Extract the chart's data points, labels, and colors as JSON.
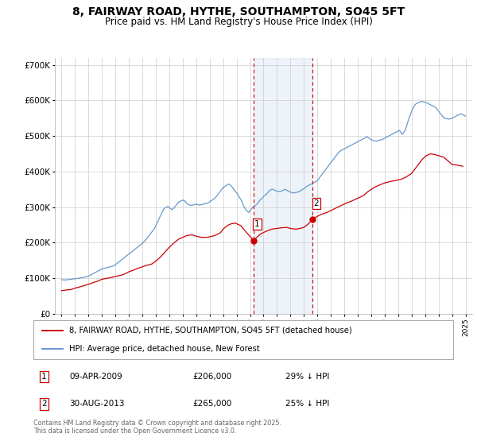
{
  "title": "8, FAIRWAY ROAD, HYTHE, SOUTHAMPTON, SO45 5FT",
  "subtitle": "Price paid vs. HM Land Registry's House Price Index (HPI)",
  "title_fontsize": 10,
  "subtitle_fontsize": 8.5,
  "background_color": "#ffffff",
  "plot_bg_color": "#ffffff",
  "grid_color": "#cccccc",
  "red_line_color": "#cc0000",
  "blue_line_color": "#6699cc",
  "shade_color": "#ccddf0",
  "dashed_line_color": "#cc0000",
  "ylim": [
    0,
    720000
  ],
  "yticks": [
    0,
    100000,
    200000,
    300000,
    400000,
    500000,
    600000,
    700000
  ],
  "ytick_labels": [
    "£0",
    "£100K",
    "£200K",
    "£300K",
    "£400K",
    "£500K",
    "£600K",
    "£700K"
  ],
  "xlim_start": 1994.5,
  "xlim_end": 2025.5,
  "xticks": [
    1995,
    1996,
    1997,
    1998,
    1999,
    2000,
    2001,
    2002,
    2003,
    2004,
    2005,
    2006,
    2007,
    2008,
    2009,
    2010,
    2011,
    2012,
    2013,
    2014,
    2015,
    2016,
    2017,
    2018,
    2019,
    2020,
    2021,
    2022,
    2023,
    2024,
    2025
  ],
  "sale1_x": 2009.27,
  "sale1_y": 206000,
  "sale1_label": "1",
  "sale2_x": 2013.66,
  "sale2_y": 265000,
  "sale2_label": "2",
  "sale1_date": "09-APR-2009",
  "sale1_price": "£206,000",
  "sale1_hpi": "29% ↓ HPI",
  "sale2_date": "30-AUG-2013",
  "sale2_price": "£265,000",
  "sale2_hpi": "25% ↓ HPI",
  "legend_label_red": "8, FAIRWAY ROAD, HYTHE, SOUTHAMPTON, SO45 5FT (detached house)",
  "legend_label_blue": "HPI: Average price, detached house, New Forest",
  "footnote": "Contains HM Land Registry data © Crown copyright and database right 2025.\nThis data is licensed under the Open Government Licence v3.0.",
  "hpi_data": {
    "years": [
      1995.0,
      1995.1,
      1995.2,
      1995.3,
      1995.4,
      1995.5,
      1995.6,
      1995.7,
      1995.8,
      1995.9,
      1996.0,
      1996.1,
      1996.2,
      1996.3,
      1996.4,
      1996.5,
      1996.6,
      1996.7,
      1996.8,
      1996.9,
      1997.0,
      1997.1,
      1997.2,
      1997.3,
      1997.4,
      1997.5,
      1997.6,
      1997.7,
      1997.8,
      1997.9,
      1998.0,
      1998.1,
      1998.2,
      1998.3,
      1998.4,
      1998.5,
      1998.6,
      1998.7,
      1998.8,
      1998.9,
      1999.0,
      1999.1,
      1999.2,
      1999.3,
      1999.4,
      1999.5,
      1999.6,
      1999.7,
      1999.8,
      1999.9,
      2000.0,
      2000.1,
      2000.2,
      2000.3,
      2000.4,
      2000.5,
      2000.6,
      2000.7,
      2000.8,
      2000.9,
      2001.0,
      2001.1,
      2001.2,
      2001.3,
      2001.4,
      2001.5,
      2001.6,
      2001.7,
      2001.8,
      2001.9,
      2002.0,
      2002.1,
      2002.2,
      2002.3,
      2002.4,
      2002.5,
      2002.6,
      2002.7,
      2002.8,
      2002.9,
      2003.0,
      2003.1,
      2003.2,
      2003.3,
      2003.4,
      2003.5,
      2003.6,
      2003.7,
      2003.8,
      2003.9,
      2004.0,
      2004.1,
      2004.2,
      2004.3,
      2004.4,
      2004.5,
      2004.6,
      2004.7,
      2004.8,
      2004.9,
      2005.0,
      2005.1,
      2005.2,
      2005.3,
      2005.4,
      2005.5,
      2005.6,
      2005.7,
      2005.8,
      2005.9,
      2006.0,
      2006.1,
      2006.2,
      2006.3,
      2006.4,
      2006.5,
      2006.6,
      2006.7,
      2006.8,
      2006.9,
      2007.0,
      2007.1,
      2007.2,
      2007.3,
      2007.4,
      2007.5,
      2007.6,
      2007.7,
      2007.8,
      2007.9,
      2008.0,
      2008.1,
      2008.2,
      2008.3,
      2008.4,
      2008.5,
      2008.6,
      2008.7,
      2008.8,
      2008.9,
      2009.0,
      2009.1,
      2009.2,
      2009.3,
      2009.4,
      2009.5,
      2009.6,
      2009.7,
      2009.8,
      2009.9,
      2010.0,
      2010.1,
      2010.2,
      2010.3,
      2010.4,
      2010.5,
      2010.6,
      2010.7,
      2010.8,
      2010.9,
      2011.0,
      2011.1,
      2011.2,
      2011.3,
      2011.4,
      2011.5,
      2011.6,
      2011.7,
      2011.8,
      2011.9,
      2012.0,
      2012.1,
      2012.2,
      2012.3,
      2012.4,
      2012.5,
      2012.6,
      2012.7,
      2012.8,
      2012.9,
      2013.0,
      2013.1,
      2013.2,
      2013.3,
      2013.4,
      2013.5,
      2013.6,
      2013.7,
      2013.8,
      2013.9,
      2014.0,
      2014.1,
      2014.2,
      2014.3,
      2014.4,
      2014.5,
      2014.6,
      2014.7,
      2014.8,
      2014.9,
      2015.0,
      2015.1,
      2015.2,
      2015.3,
      2015.4,
      2015.5,
      2015.6,
      2015.7,
      2015.8,
      2015.9,
      2016.0,
      2016.1,
      2016.2,
      2016.3,
      2016.4,
      2016.5,
      2016.6,
      2016.7,
      2016.8,
      2016.9,
      2017.0,
      2017.1,
      2017.2,
      2017.3,
      2017.4,
      2017.5,
      2017.6,
      2017.7,
      2017.8,
      2017.9,
      2018.0,
      2018.1,
      2018.2,
      2018.3,
      2018.4,
      2018.5,
      2018.6,
      2018.7,
      2018.8,
      2018.9,
      2019.0,
      2019.1,
      2019.2,
      2019.3,
      2019.4,
      2019.5,
      2019.6,
      2019.7,
      2019.8,
      2019.9,
      2020.0,
      2020.1,
      2020.2,
      2020.3,
      2020.4,
      2020.5,
      2020.6,
      2020.7,
      2020.8,
      2020.9,
      2021.0,
      2021.1,
      2021.2,
      2021.3,
      2021.4,
      2021.5,
      2021.6,
      2021.7,
      2021.8,
      2021.9,
      2022.0,
      2022.1,
      2022.2,
      2022.3,
      2022.4,
      2022.5,
      2022.6,
      2022.7,
      2022.8,
      2022.9,
      2023.0,
      2023.1,
      2023.2,
      2023.3,
      2023.4,
      2023.5,
      2023.6,
      2023.7,
      2023.8,
      2023.9,
      2024.0,
      2024.1,
      2024.2,
      2024.3,
      2024.4,
      2024.5,
      2024.6,
      2024.7,
      2024.8,
      2024.9,
      2025.0
    ],
    "values": [
      96000,
      95000,
      95500,
      95000,
      95500,
      96000,
      96500,
      97000,
      97500,
      98000,
      98500,
      99000,
      99500,
      100000,
      100500,
      101000,
      102000,
      103000,
      104000,
      105000,
      106000,
      108000,
      110000,
      112000,
      114000,
      116000,
      118000,
      120000,
      122000,
      124000,
      126000,
      127000,
      128000,
      129000,
      130000,
      131000,
      132000,
      133000,
      134000,
      135000,
      138000,
      141000,
      144000,
      147000,
      150000,
      153000,
      156000,
      159000,
      162000,
      165000,
      168000,
      171000,
      174000,
      177000,
      180000,
      183000,
      186000,
      189000,
      192000,
      195000,
      198000,
      202000,
      206000,
      210000,
      215000,
      220000,
      225000,
      230000,
      235000,
      240000,
      248000,
      256000,
      264000,
      272000,
      280000,
      288000,
      296000,
      298000,
      300000,
      302000,
      298000,
      295000,
      293000,
      296000,
      300000,
      305000,
      310000,
      314000,
      316000,
      318000,
      320000,
      318000,
      316000,
      310000,
      308000,
      306000,
      305000,
      305000,
      306000,
      308000,
      308000,
      307000,
      306000,
      306000,
      307000,
      308000,
      309000,
      310000,
      311000,
      312000,
      315000,
      318000,
      320000,
      323000,
      326000,
      330000,
      335000,
      340000,
      345000,
      350000,
      355000,
      358000,
      360000,
      363000,
      365000,
      363000,
      360000,
      355000,
      350000,
      345000,
      340000,
      335000,
      328000,
      322000,
      315000,
      305000,
      298000,
      292000,
      288000,
      285000,
      290000,
      295000,
      300000,
      302000,
      305000,
      308000,
      312000,
      318000,
      322000,
      325000,
      330000,
      333000,
      336000,
      340000,
      345000,
      348000,
      350000,
      350000,
      348000,
      346000,
      345000,
      344000,
      344000,
      345000,
      346000,
      348000,
      350000,
      348000,
      346000,
      344000,
      342000,
      341000,
      340000,
      340000,
      341000,
      342000,
      343000,
      345000,
      347000,
      350000,
      352000,
      355000,
      358000,
      360000,
      362000,
      364000,
      366000,
      368000,
      370000,
      372000,
      375000,
      380000,
      385000,
      390000,
      395000,
      400000,
      405000,
      410000,
      415000,
      420000,
      425000,
      430000,
      435000,
      440000,
      445000,
      450000,
      455000,
      458000,
      460000,
      462000,
      464000,
      466000,
      468000,
      470000,
      472000,
      474000,
      476000,
      478000,
      480000,
      482000,
      484000,
      486000,
      488000,
      490000,
      492000,
      494000,
      496000,
      498000,
      495000,
      492000,
      490000,
      488000,
      487000,
      486000,
      486000,
      487000,
      488000,
      489000,
      490000,
      492000,
      494000,
      496000,
      498000,
      500000,
      502000,
      504000,
      506000,
      508000,
      510000,
      512000,
      514000,
      516000,
      510000,
      505000,
      510000,
      515000,
      525000,
      538000,
      550000,
      560000,
      570000,
      578000,
      585000,
      590000,
      592000,
      594000,
      596000,
      597000,
      597000,
      596000,
      595000,
      594000,
      592000,
      590000,
      588000,
      586000,
      584000,
      582000,
      580000,
      575000,
      570000,
      565000,
      560000,
      555000,
      552000,
      550000,
      549000,
      548000,
      548000,
      549000,
      550000,
      552000,
      554000,
      556000,
      558000,
      560000,
      562000,
      562000,
      560000,
      558000,
      556000
    ]
  },
  "price_data": {
    "years": [
      1995.0,
      1995.2,
      1995.4,
      1995.7,
      1996.0,
      1996.3,
      1996.6,
      1997.0,
      1997.3,
      1997.7,
      1998.0,
      1998.4,
      1998.7,
      1999.0,
      1999.4,
      1999.7,
      2000.0,
      2000.3,
      2000.6,
      2001.0,
      2001.3,
      2001.7,
      2002.0,
      2002.3,
      2002.6,
      2002.9,
      2003.3,
      2003.7,
      2004.0,
      2004.3,
      2004.7,
      2005.0,
      2005.4,
      2005.8,
      2006.2,
      2006.5,
      2006.8,
      2007.0,
      2007.2,
      2007.4,
      2007.6,
      2007.9,
      2008.3,
      2008.7,
      2009.27,
      2009.5,
      2009.8,
      2010.2,
      2010.6,
      2011.0,
      2011.4,
      2011.7,
      2012.0,
      2012.4,
      2012.7,
      2013.0,
      2013.3,
      2013.66,
      2013.9,
      2014.3,
      2014.7,
      2015.0,
      2015.4,
      2015.8,
      2016.2,
      2016.6,
      2017.0,
      2017.4,
      2017.8,
      2018.2,
      2018.6,
      2019.0,
      2019.4,
      2019.8,
      2020.2,
      2020.6,
      2021.0,
      2021.4,
      2021.8,
      2022.1,
      2022.4,
      2022.7,
      2023.0,
      2023.4,
      2023.7,
      2024.0,
      2024.4,
      2024.8
    ],
    "values": [
      65000,
      66000,
      67000,
      68000,
      72000,
      75000,
      78000,
      83000,
      87000,
      92000,
      97000,
      100000,
      102000,
      105000,
      108000,
      112000,
      118000,
      122000,
      127000,
      132000,
      136000,
      140000,
      148000,
      158000,
      170000,
      183000,
      198000,
      210000,
      215000,
      220000,
      222000,
      218000,
      215000,
      215000,
      218000,
      222000,
      228000,
      238000,
      245000,
      250000,
      253000,
      255000,
      248000,
      230000,
      206000,
      215000,
      225000,
      232000,
      238000,
      240000,
      242000,
      243000,
      240000,
      238000,
      240000,
      243000,
      252000,
      265000,
      272000,
      280000,
      285000,
      290000,
      298000,
      305000,
      312000,
      318000,
      325000,
      332000,
      345000,
      355000,
      362000,
      368000,
      372000,
      375000,
      378000,
      385000,
      395000,
      415000,
      435000,
      445000,
      450000,
      448000,
      445000,
      440000,
      430000,
      420000,
      418000,
      415000
    ]
  }
}
